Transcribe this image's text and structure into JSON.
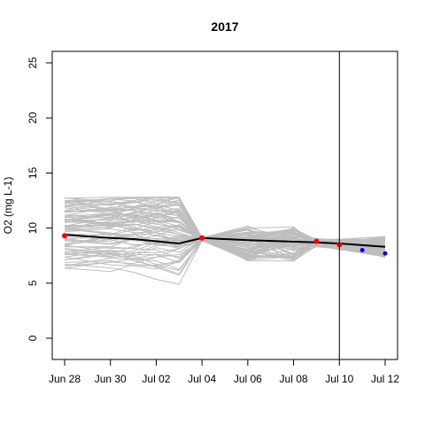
{
  "chart_data": {
    "type": "line",
    "title": "2017",
    "xlabel": "",
    "ylabel": "O2 (mg L-1)",
    "x_ticks": [
      "Jun 28",
      "Jun 30",
      "Jul 02",
      "Jul 04",
      "Jul 06",
      "Jul 08",
      "Jul 10",
      "Jul 12"
    ],
    "y_ticks": [
      0,
      5,
      10,
      15,
      20,
      25
    ],
    "ylim": [
      -2,
      26
    ],
    "xlim": [
      "2017-06-27",
      "2017-07-12"
    ],
    "vertical_line_x": "2017-07-10",
    "grid": false,
    "legend": "none",
    "colors": {
      "ensemble": "#bebebe",
      "mean": "#000000",
      "observed_past": "#ff0000",
      "observed_future": "#0000ff",
      "vline": "#000000"
    },
    "series": [
      {
        "x": [
          "2017-06-28",
          "2017-06-30",
          "2017-07-01",
          "2017-07-02",
          "2017-07-03",
          "2017-07-04",
          "2017-07-06",
          "2017-07-09",
          "2017-07-10",
          "2017-07-12"
        ],
        "y": [
          9.4,
          9.1,
          9.0,
          8.8,
          8.6,
          9.1,
          8.9,
          8.7,
          8.6,
          8.3
        ]
      },
      {
        "x": [
          "2017-06-28",
          "2017-07-04",
          "2017-07-09",
          "2017-07-10"
        ],
        "y": [
          9.3,
          9.1,
          8.8,
          8.5
        ]
      },
      {
        "x": [
          "2017-07-11",
          "2017-07-12"
        ],
        "y": [
          8.0,
          7.7
        ]
      }
    ],
    "ensemble": {
      "x": [
        "2017-06-28",
        "2017-06-30",
        "2017-07-01",
        "2017-07-02",
        "2017-07-03",
        "2017-07-04",
        "2017-07-06",
        "2017-07-08",
        "2017-07-09",
        "2017-07-10",
        "2017-07-12"
      ],
      "count": 80,
      "start_min": 6.2,
      "start_max": 13.0,
      "pinch_y": 9.0
    }
  }
}
